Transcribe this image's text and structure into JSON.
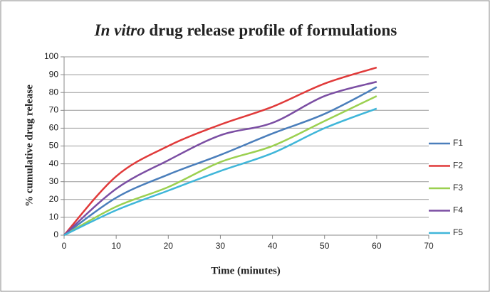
{
  "chart_data": {
    "type": "line",
    "title": {
      "italic": "In vitro",
      "rest": "drug release profile of formulations"
    },
    "xlabel": "Time (minutes)",
    "ylabel": "% cumulative drug release",
    "x": [
      0,
      10,
      20,
      30,
      40,
      50,
      60
    ],
    "series": [
      {
        "name": "F1",
        "color": "#4a7ebb",
        "values": [
          0,
          21,
          34,
          45,
          57,
          68,
          83
        ]
      },
      {
        "name": "F2",
        "color": "#e03a3a",
        "values": [
          0,
          33,
          50,
          62,
          72,
          85,
          94
        ]
      },
      {
        "name": "F3",
        "color": "#9bd050",
        "values": [
          0,
          16,
          27,
          41,
          50,
          64,
          78
        ]
      },
      {
        "name": "F4",
        "color": "#7b4ea3",
        "values": [
          0,
          26,
          42,
          56,
          63,
          78,
          86
        ]
      },
      {
        "name": "F5",
        "color": "#3fb6d9",
        "values": [
          0,
          14,
          25,
          36,
          46,
          60,
          71
        ]
      }
    ],
    "xlim": [
      0,
      70
    ],
    "xticks": [
      0,
      10,
      20,
      30,
      40,
      50,
      60,
      70
    ],
    "ylim": [
      0,
      100
    ],
    "yticks": [
      0,
      10,
      20,
      30,
      40,
      50,
      60,
      70,
      80,
      90,
      100
    ],
    "grid": true,
    "legend": "right",
    "smooth": true
  }
}
